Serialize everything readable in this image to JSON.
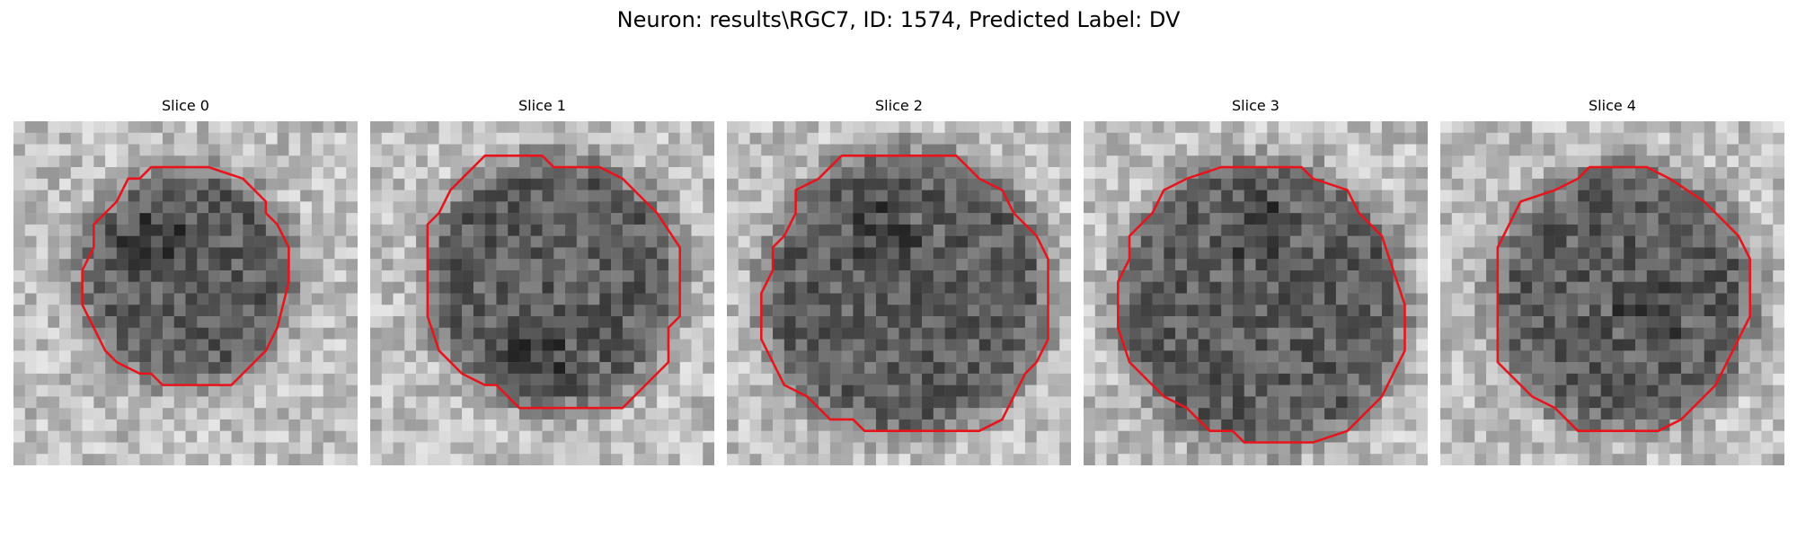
{
  "figure": {
    "title": "Neuron: results\\RGC7, ID: 1574, Predicted Label: DV",
    "contour_color": "#e8141c"
  },
  "panels": [
    {
      "title": "Slice 0"
    },
    {
      "title": "Slice 1"
    },
    {
      "title": "Slice 2"
    },
    {
      "title": "Slice 3"
    },
    {
      "title": "Slice 4"
    }
  ]
}
